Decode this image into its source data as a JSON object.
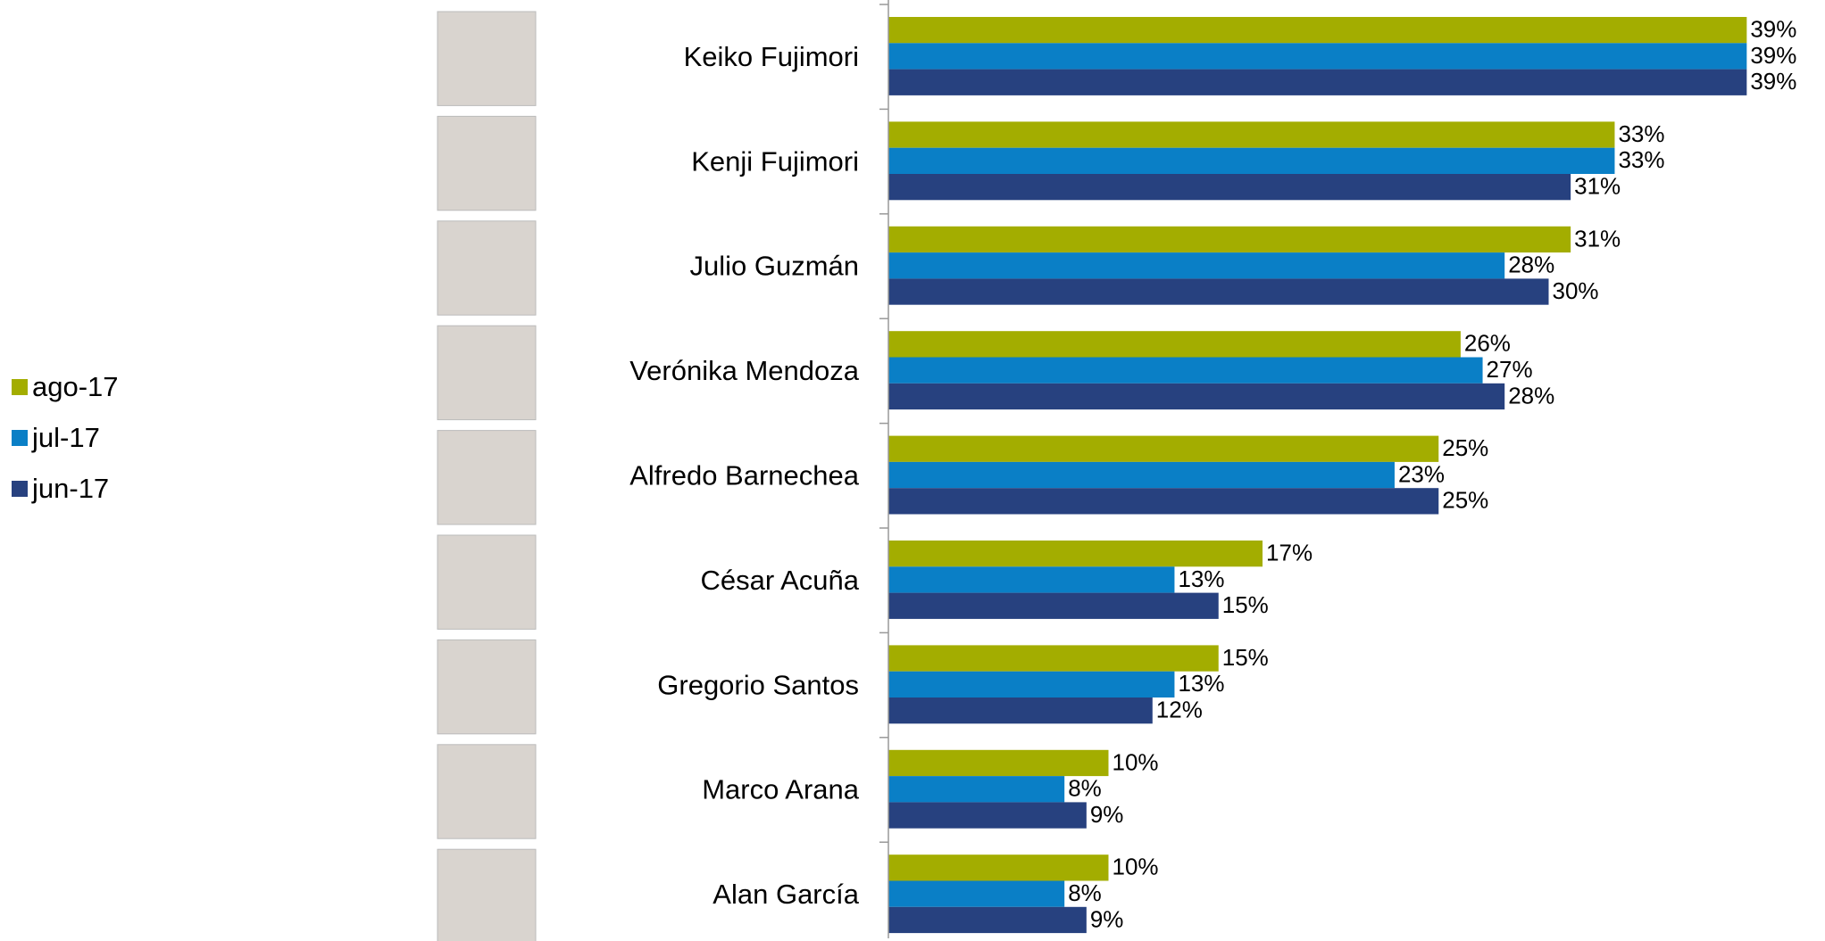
{
  "chart_data": {
    "type": "bar",
    "orientation": "horizontal",
    "categories": [
      "Keiko Fujimori",
      "Kenji Fujimori",
      "Julio Guzmán",
      "Verónika Mendoza",
      "Alfredo Barnechea",
      "César Acuña",
      "Gregorio Santos",
      "Marco Arana",
      "Alan García"
    ],
    "series": [
      {
        "name": "ago-17",
        "color": "#a3ad00",
        "values": [
          39,
          33,
          31,
          26,
          25,
          17,
          15,
          10,
          10
        ],
        "value_labels": [
          "39%",
          "33%",
          "31%",
          "26%",
          "25%",
          "17%",
          "15%",
          "10%",
          "10%"
        ]
      },
      {
        "name": "jul-17",
        "color": "#0a7fc6",
        "values": [
          39,
          33,
          28,
          27,
          23,
          13,
          13,
          8,
          8
        ],
        "value_labels": [
          "39%",
          "33%",
          "28%",
          "27%",
          "23%",
          "13%",
          "13%",
          "8%",
          "8%"
        ]
      },
      {
        "name": "jun-17",
        "color": "#27417f",
        "values": [
          39,
          31,
          30,
          28,
          25,
          15,
          12,
          9,
          9
        ],
        "value_labels": [
          "39%",
          "31%",
          "30%",
          "28%",
          "25%",
          "15%",
          "12%",
          "9%",
          "9%"
        ]
      }
    ],
    "legend": "left"
  }
}
